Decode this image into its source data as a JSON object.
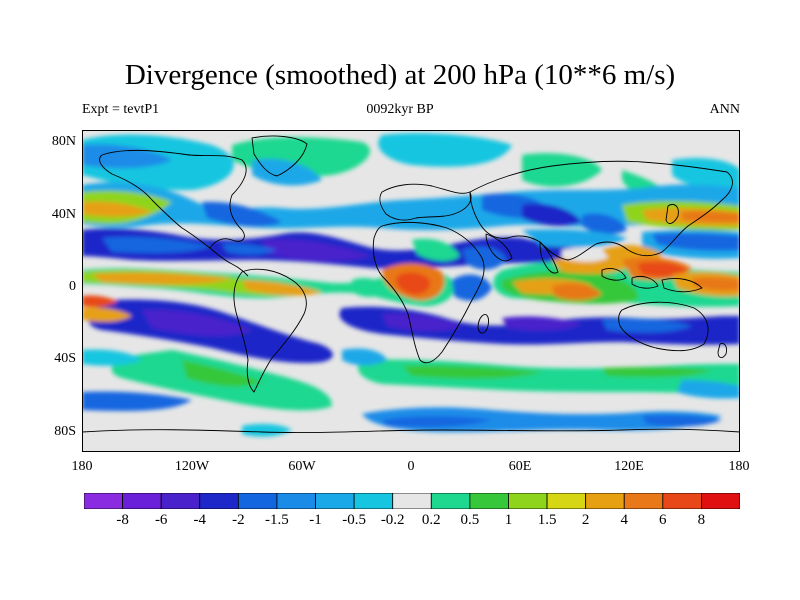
{
  "title": "Divergence (smoothed) at 200 hPa (10**6 m/s)",
  "subtitle": {
    "left": "Expt = tevtP1",
    "center": "0092kyr BP",
    "right": "ANN"
  },
  "axes": {
    "lat_labels": [
      "80N",
      "40N",
      "0",
      "40S",
      "80S"
    ],
    "lon_labels": [
      "180",
      "120W",
      "60W",
      "0",
      "60E",
      "120E",
      "180"
    ]
  },
  "colorbar": {
    "colors": [
      "#8a2be2",
      "#6a1fd8",
      "#4a22cc",
      "#1e28c8",
      "#1466e0",
      "#1a8ce8",
      "#1aa8e8",
      "#16c6e0",
      "#e6e6e6",
      "#1ed890",
      "#36c83a",
      "#8fd41c",
      "#d6d614",
      "#e6a012",
      "#e87818",
      "#e84818",
      "#e01010"
    ],
    "labels": [
      "-8",
      "-6",
      "-4",
      "-2",
      "-1.5",
      "-1",
      "-0.5",
      "-0.2",
      "0.2",
      "0.5",
      "1",
      "1.5",
      "2",
      "4",
      "6",
      "8"
    ]
  },
  "map": {
    "ocean_land_background": "#e6e6e6",
    "coastline_color": "#000000",
    "region_labels": [
      "land-outlines",
      "divergence-field"
    ]
  }
}
